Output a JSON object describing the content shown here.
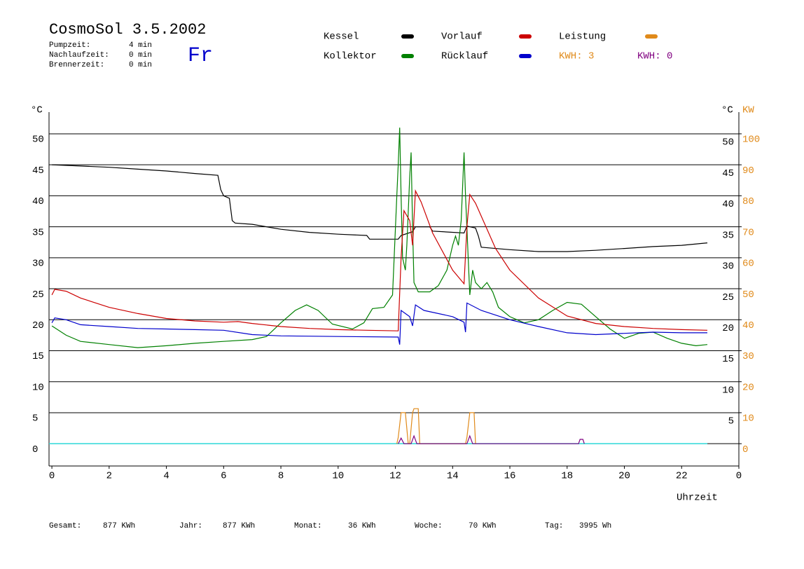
{
  "chart_data": {
    "type": "line",
    "title": "CosmoSol 3.5.2002",
    "day": "Fr",
    "info": [
      {
        "label": "Pumpzeit:",
        "value": "4 min"
      },
      {
        "label": "Nachlaufzeit:",
        "value": "0 min"
      },
      {
        "label": "Brennerzeit:",
        "value": "0 min"
      }
    ],
    "kwh_labels": [
      "KWH: 3",
      "KWH: 0"
    ],
    "y_label": "°C",
    "y2_label": "KW",
    "x_label": "Uhrzeit",
    "totals": [
      {
        "label": "Gesamt:",
        "value": "877 KWh"
      },
      {
        "label": "Jahr:",
        "value": "877 KWh"
      },
      {
        "label": "Monat:",
        "value": "36 KWh"
      },
      {
        "label": "Woche:",
        "value": "70 KWh"
      },
      {
        "label": "Tag:",
        "value": "3995 Wh"
      }
    ],
    "xlim": [
      -0.1,
      24
    ],
    "xticks": [
      0,
      2,
      4,
      6,
      8,
      10,
      12,
      14,
      16,
      18,
      20,
      22,
      {
        "value": 24,
        "label": "0"
      }
    ],
    "ylim": [
      -3.6,
      53.5
    ],
    "yticks": [
      0,
      5,
      10,
      15,
      20,
      25,
      30,
      35,
      40,
      45,
      50
    ],
    "yticks_right": [
      5,
      10,
      15,
      20,
      25,
      30,
      35,
      40,
      45,
      50
    ],
    "y2lim": [
      -7.2,
      107
    ],
    "y2ticks": [
      0,
      10,
      20,
      30,
      40,
      50,
      60,
      70,
      80,
      90,
      100
    ],
    "grid": true,
    "series": [
      {
        "name": "Kessel",
        "color": "#000000",
        "x": [
          0,
          1,
          2,
          3,
          4,
          5,
          5.8,
          5.9,
          6.0,
          6.2,
          6.3,
          6.4,
          7,
          8,
          9,
          10,
          11,
          11.1,
          12.1,
          12.2,
          12.6,
          12.7,
          13.2,
          13.3,
          14.4,
          14.5,
          14.8,
          14.9,
          15.0,
          16,
          17,
          18,
          19,
          20,
          21,
          22,
          22.9
        ],
        "values": [
          45.0,
          44.8,
          44.6,
          44.3,
          44.0,
          43.6,
          43.3,
          41,
          40,
          39.6,
          36,
          35.6,
          35.4,
          34.6,
          34.1,
          33.8,
          33.6,
          33.0,
          33.0,
          33.6,
          34.2,
          35.0,
          35.0,
          34.3,
          34.0,
          35.1,
          34.8,
          33.5,
          31.7,
          31.3,
          31.0,
          31.0,
          31.2,
          31.5,
          31.8,
          32.0,
          32.4
        ]
      },
      {
        "name": "Kollektor",
        "color": "#008000",
        "x": [
          0,
          0.5,
          1,
          2,
          3,
          4,
          5,
          6,
          7,
          7.5,
          8,
          8.5,
          8.9,
          9.3,
          9.8,
          10.5,
          10.9,
          11.2,
          11.6,
          11.9,
          12.05,
          12.1,
          12.15,
          12.2,
          12.25,
          12.35,
          12.4,
          12.5,
          12.55,
          12.6,
          12.65,
          12.8,
          13.2,
          13.5,
          13.8,
          14.0,
          14.1,
          14.2,
          14.3,
          14.4,
          14.45,
          14.6,
          14.7,
          14.8,
          15.0,
          15.2,
          15.4,
          15.6,
          16,
          16.5,
          17,
          17.5,
          18,
          18.5,
          19,
          19.5,
          20,
          20.5,
          21,
          21.5,
          22,
          22.5,
          22.9
        ],
        "values": [
          19.0,
          17.5,
          16.5,
          16,
          15.5,
          15.8,
          16.2,
          16.5,
          16.8,
          17.3,
          19.5,
          21.5,
          22.4,
          21.5,
          19.3,
          18.5,
          19.5,
          21.8,
          22,
          24,
          40,
          45,
          51,
          40,
          30,
          28,
          32,
          43,
          47,
          35,
          26,
          24.5,
          24.5,
          25.5,
          28,
          32,
          33.5,
          32,
          36,
          47,
          40,
          24,
          28,
          26,
          25,
          26,
          24.5,
          22,
          20.5,
          19.5,
          20,
          21.5,
          22.8,
          22.5,
          20.5,
          18.5,
          17,
          17.8,
          18,
          17,
          16.2,
          15.8,
          16
        ]
      },
      {
        "name": "Vorlauf",
        "color": "#cc0000",
        "x": [
          0,
          0.1,
          0.5,
          1,
          2,
          3,
          4,
          5,
          6,
          6.5,
          7,
          8,
          9,
          10,
          11,
          12.1,
          12.2,
          12.3,
          12.5,
          12.6,
          12.7,
          12.9,
          13.3,
          14,
          14.4,
          14.5,
          14.6,
          14.8,
          15.5,
          16,
          17,
          18,
          19,
          20,
          21,
          22,
          22.9
        ],
        "values": [
          24.0,
          24.9,
          24.6,
          23.5,
          22,
          21,
          20.2,
          19.8,
          19.6,
          19.7,
          19.4,
          18.9,
          18.6,
          18.4,
          18.3,
          18.2,
          30,
          37.6,
          36,
          32,
          40.8,
          39,
          34,
          28,
          25.8,
          35,
          40.2,
          38.8,
          31.5,
          28,
          23.5,
          20.6,
          19.4,
          18.9,
          18.6,
          18.4,
          18.3
        ]
      },
      {
        "name": "Rücklauf",
        "color": "#0000cc",
        "x": [
          0,
          0.1,
          0.5,
          1,
          2,
          3,
          4,
          5,
          6,
          7,
          8,
          10,
          12.1,
          12.15,
          12.2,
          12.5,
          12.6,
          12.7,
          13,
          14,
          14.4,
          14.45,
          14.5,
          15,
          16,
          17,
          18,
          19,
          20,
          21,
          22,
          22.9
        ],
        "values": [
          19.5,
          20.3,
          20,
          19.2,
          18.9,
          18.6,
          18.5,
          18.4,
          18.3,
          17.6,
          17.4,
          17.3,
          17.2,
          16,
          21.5,
          20.5,
          19,
          22.4,
          21.5,
          20.5,
          19.6,
          18,
          22.7,
          21.5,
          20,
          18.9,
          17.9,
          17.6,
          17.8,
          18,
          17.9,
          17.9
        ]
      },
      {
        "name": "Leistung",
        "color": "#e08a1a",
        "axis": "y2",
        "x": [
          12.05,
          12.1,
          12.2,
          12.35,
          12.45,
          12.5,
          12.6,
          12.65,
          12.8,
          12.85,
          14.45,
          14.5,
          14.6,
          14.75,
          14.8
        ],
        "values": [
          0,
          2,
          10,
          10,
          0,
          0,
          10,
          11.3,
          11.3,
          0,
          0,
          2,
          10,
          10,
          0
        ]
      },
      {
        "color": "#800080",
        "axis": "y2",
        "x": [
          12.1,
          12.2,
          12.3,
          12.55,
          12.65,
          12.75,
          14.5,
          14.6,
          14.7,
          18.4,
          18.45,
          18.55,
          18.6
        ],
        "values": [
          0,
          1.8,
          0,
          0,
          2.5,
          0,
          0,
          2.5,
          0,
          0,
          1.4,
          1.4,
          0
        ]
      }
    ]
  }
}
